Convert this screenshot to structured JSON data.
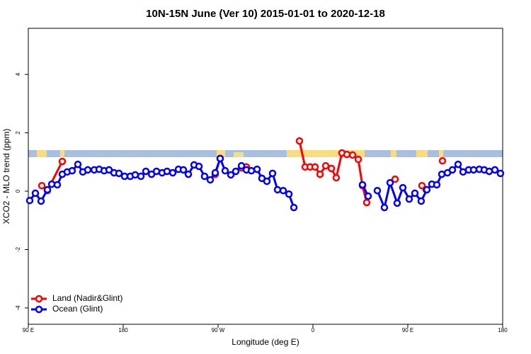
{
  "chart_data": {
    "type": "line",
    "title": "10N-15N June (Ver 10)   2015-01-01 to 2020-12-18",
    "x_label": "Longitude (deg E)",
    "y_label": "XCO2 - MLO trend (ppm)",
    "xlim": [
      90,
      540
    ],
    "ylim": [
      -4.56,
      5.58
    ],
    "xticks": [
      {
        "value": 90,
        "label": "90 E"
      },
      180,
      {
        "value": 270,
        "label": "90 W"
      },
      {
        "value": 360,
        "label": "0"
      },
      {
        "value": 450,
        "label": "90 E"
      },
      {
        "value": 540,
        "label": "180"
      }
    ],
    "yticks": [
      -4,
      -2,
      0,
      2,
      4
    ],
    "legend": "bottom-left",
    "series": [
      {
        "name": "Land (Nadir&Glint)",
        "color": "#ff0000",
        "x": [
          102.8,
          108.1,
          122.2,
          null,
          267.3,
          272.0,
          null,
          292.2,
          296.9,
          null,
          347.2,
          352.6,
          357.3,
          362.0,
          366.7,
          372.1,
          377.5,
          382.1,
          387.5,
          392.2,
          397.6,
          403.0,
          407.0,
          411.0,
          null,
          437.9,
          null,
          463.4,
          467.4,
          null,
          482.9
        ],
        "values": [
          0.19,
          0.02,
          1.02,
          null,
          0.58,
          1.12,
          null,
          0.8,
          0.83,
          null,
          1.72,
          0.83,
          0.83,
          0.83,
          0.58,
          0.87,
          0.78,
          0.46,
          1.31,
          1.26,
          1.24,
          1.09,
          0.19,
          -0.39,
          null,
          0.41,
          null,
          0.19,
          0.05,
          null,
          1.04
        ]
      },
      {
        "name": "Ocean (Glint)",
        "color": "#0000ff",
        "x": [
          91.3,
          96.7,
          102.1,
          108.1,
          112.2,
          117.5,
          122.2,
          126.9,
          131.6,
          137.0,
          141.7,
          146.4,
          152.5,
          157.2,
          161.9,
          166.6,
          171.3,
          176.0,
          181.3,
          186.7,
          191.4,
          196.8,
          201.5,
          206.9,
          211.6,
          216.9,
          221.6,
          227.0,
          232.4,
          237.1,
          241.8,
          247.2,
          251.9,
          257.2,
          262.6,
          267.3,
          272.0,
          276.7,
          282.1,
          286.8,
          292.2,
          296.9,
          301.6,
          307.0,
          311.6,
          316.3,
          321.7,
          326.4,
          331.8,
          337.2,
          341.9,
          null,
          407.0,
          412.4,
          null,
          421.1,
          427.8,
          433.2,
          439.9,
          445.3,
          451.3,
          456.7,
          462.7,
          468.1,
          472.8,
          477.5,
          482.2,
          487.6,
          492.3,
          497.7,
          502.4,
          507.7,
          512.4,
          517.8,
          522.5,
          527.2,
          532.6,
          537.9
        ],
        "values": [
          -0.32,
          -0.07,
          -0.34,
          0.05,
          0.24,
          0.22,
          0.58,
          0.66,
          0.7,
          0.92,
          0.66,
          0.73,
          0.73,
          0.75,
          0.7,
          0.73,
          0.63,
          0.61,
          0.51,
          0.51,
          0.56,
          0.51,
          0.68,
          0.58,
          0.68,
          0.63,
          0.68,
          0.63,
          0.75,
          0.73,
          0.58,
          0.9,
          0.85,
          0.51,
          0.39,
          0.63,
          1.12,
          0.7,
          0.56,
          0.68,
          0.87,
          0.73,
          0.7,
          0.75,
          0.44,
          0.34,
          0.61,
          0.05,
          0.02,
          -0.1,
          -0.56,
          null,
          0.22,
          -0.17,
          null,
          0.02,
          -0.56,
          0.29,
          -0.41,
          0.12,
          -0.27,
          -0.07,
          -0.34,
          0.05,
          0.24,
          0.22,
          0.58,
          0.63,
          0.73,
          0.92,
          0.66,
          0.73,
          0.73,
          0.75,
          0.73,
          0.68,
          0.73,
          0.61
        ]
      }
    ]
  }
}
